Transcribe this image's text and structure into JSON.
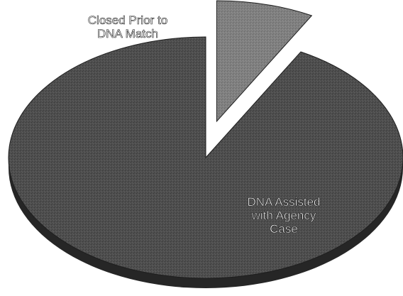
{
  "chart_data": {
    "type": "pie",
    "title": "",
    "style": "3d-exploded",
    "slices": [
      {
        "label_lines": [
          "Closed Prior to",
          "DNA Match"
        ],
        "value": 8,
        "color": "#7d7d7d",
        "exploded": true
      },
      {
        "label_lines": [
          "DNA Assisted",
          "with Agency",
          "Case"
        ],
        "value": 92,
        "color": "#4a4a4a",
        "exploded": false
      }
    ],
    "legend": "none",
    "labels_position": "on-slice"
  }
}
